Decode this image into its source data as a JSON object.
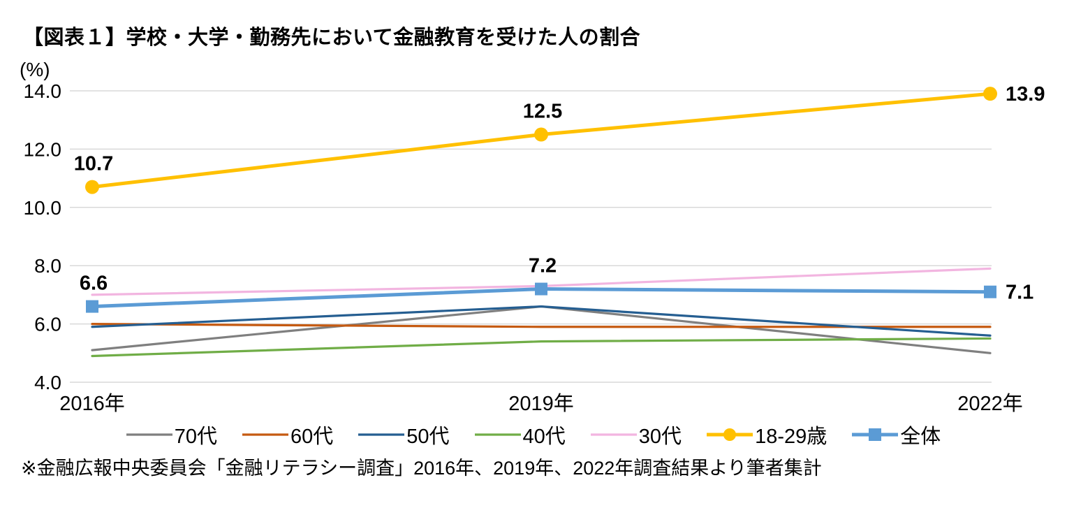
{
  "title": "【図表１】学校・大学・勤務先において金融教育を受けた人の割合",
  "unit_label": "(%)",
  "source_note": "※金融広報中央委員会「金融リテラシー調査」2016年、2019年、2022年調査結果より筆者集計",
  "chart_data": {
    "type": "line",
    "categories": [
      "2016年",
      "2019年",
      "2022年"
    ],
    "ylim": [
      4.0,
      14.0
    ],
    "yticks": [
      4.0,
      6.0,
      8.0,
      10.0,
      12.0,
      14.0
    ],
    "ytick_labels": [
      "4.0",
      "6.0",
      "8.0",
      "10.0",
      "12.0",
      "14.0"
    ],
    "grid": true,
    "legend_position": "bottom",
    "grid_color": "#d9d9d9",
    "text_color": "#000000",
    "series": [
      {
        "name": "70代",
        "values": [
          5.1,
          6.6,
          5.0
        ],
        "color": "#7f7f7f",
        "marker": "none"
      },
      {
        "name": "60代",
        "values": [
          6.0,
          5.9,
          5.9
        ],
        "color": "#c55a11",
        "marker": "none"
      },
      {
        "name": "50代",
        "values": [
          5.9,
          6.6,
          5.6
        ],
        "color": "#255e91",
        "marker": "none"
      },
      {
        "name": "40代",
        "values": [
          4.9,
          5.4,
          5.5
        ],
        "color": "#70ad47",
        "marker": "none"
      },
      {
        "name": "30代",
        "values": [
          7.0,
          7.3,
          7.9
        ],
        "color": "#f2b5e0",
        "marker": "none"
      },
      {
        "name": "18-29歳",
        "values": [
          10.7,
          12.5,
          13.9
        ],
        "color": "#ffc000",
        "marker": "circle",
        "data_labels": [
          "10.7",
          "12.5",
          "13.9"
        ]
      },
      {
        "name": "全体",
        "values": [
          6.6,
          7.2,
          7.1
        ],
        "color": "#5b9bd5",
        "marker": "square",
        "data_labels": [
          "6.6",
          "7.2",
          "7.1"
        ]
      }
    ]
  }
}
